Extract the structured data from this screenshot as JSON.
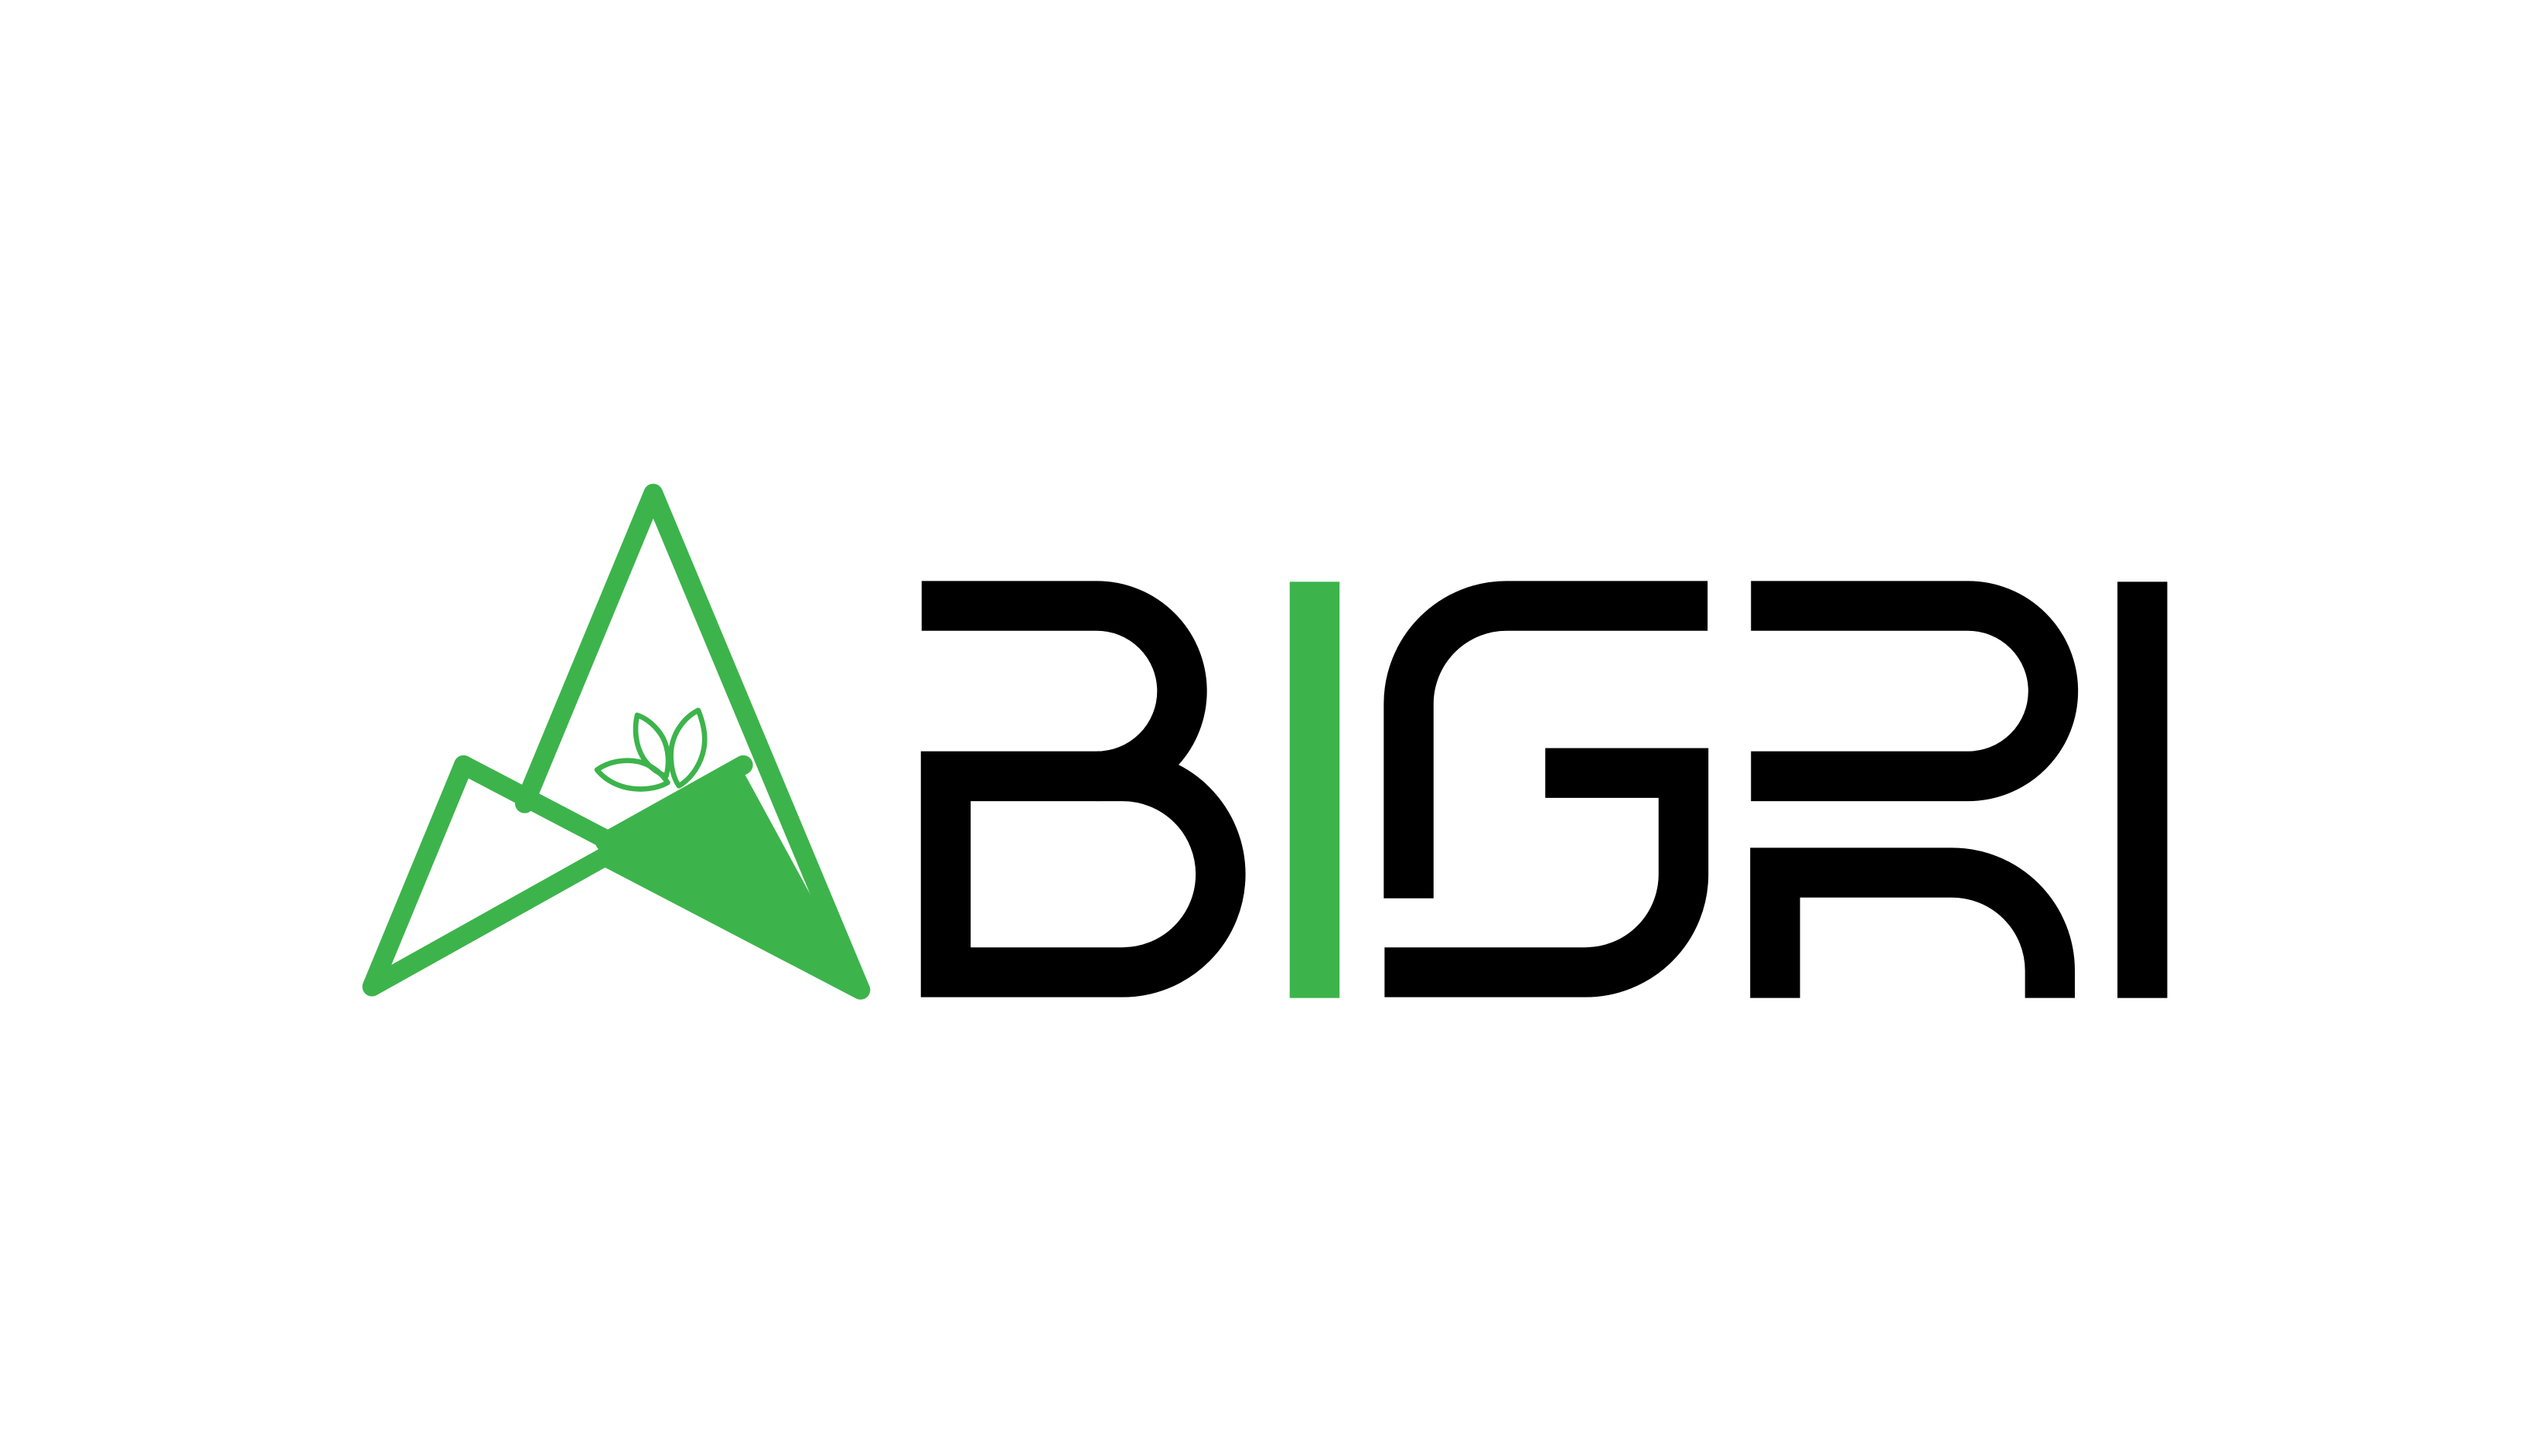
{
  "brand": {
    "wordmark": "ABIGRI",
    "colors": {
      "green": "#3cb44b",
      "black": "#000000",
      "background": "#ffffff"
    },
    "icons": [
      "mountain-a-icon",
      "sprout-leaves-icon"
    ]
  }
}
